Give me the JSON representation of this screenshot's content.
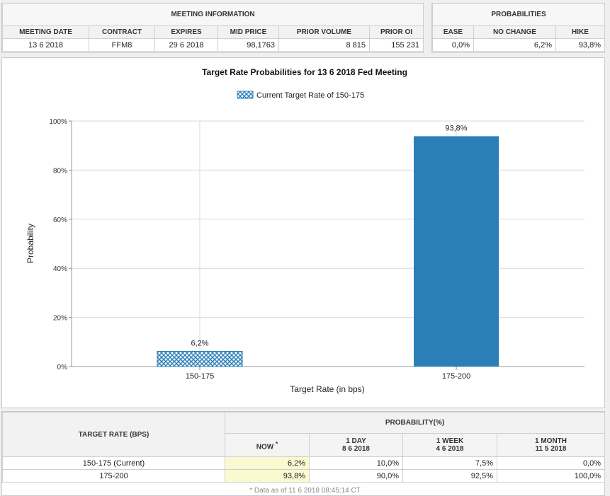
{
  "meeting_info": {
    "title": "MEETING INFORMATION",
    "headers": [
      "MEETING DATE",
      "CONTRACT",
      "EXPIRES",
      "MID PRICE",
      "PRIOR VOLUME",
      "PRIOR OI"
    ],
    "row": [
      "13 6 2018",
      "FFM8",
      "29 6 2018",
      "98,1763",
      "8 815",
      "155 231"
    ]
  },
  "probabilities": {
    "title": "PROBABILITIES",
    "headers": [
      "EASE",
      "NO CHANGE",
      "HIKE"
    ],
    "row": [
      "0,0%",
      "6,2%",
      "93,8%"
    ]
  },
  "chart_data": {
    "type": "bar",
    "title": "Target Rate Probabilities for 13 6 2018 Fed Meeting",
    "legend": "Current Target Rate of 150-175",
    "legend_position": "top-center",
    "xlabel": "Target Rate (in bps)",
    "ylabel": "Probability",
    "categories": [
      "150-175",
      "175-200"
    ],
    "values": [
      6.2,
      93.8
    ],
    "value_labels": [
      "6,2%",
      "93,8%"
    ],
    "current_category": "150-175",
    "ylim": [
      0,
      100
    ],
    "yticks": [
      0,
      20,
      40,
      60,
      80,
      100
    ],
    "ytick_labels": [
      "0%",
      "20%",
      "40%",
      "60%",
      "80%",
      "100%"
    ],
    "grid": true,
    "colors": {
      "bar": "#2a7fb8",
      "current_pattern": "#2a7fb8"
    }
  },
  "prob_table": {
    "target_header": "TARGET RATE (BPS)",
    "group_header": "PROBABILITY(%)",
    "now_header": "NOW",
    "now_marker": "*",
    "columns": [
      {
        "label": "1 DAY",
        "date": "8 6 2018"
      },
      {
        "label": "1 WEEK",
        "date": "4 6 2018"
      },
      {
        "label": "1 MONTH",
        "date": "11 5 2018"
      }
    ],
    "rows": [
      {
        "rate": "150-175 (Current)",
        "now": "6,2%",
        "day": "10,0%",
        "week": "7,5%",
        "month": "0,0%"
      },
      {
        "rate": "175-200",
        "now": "93,8%",
        "day": "90,0%",
        "week": "92,5%",
        "month": "100,0%"
      }
    ],
    "footnote": "* Data as of 11 6 2018 08:45:14 CT"
  }
}
